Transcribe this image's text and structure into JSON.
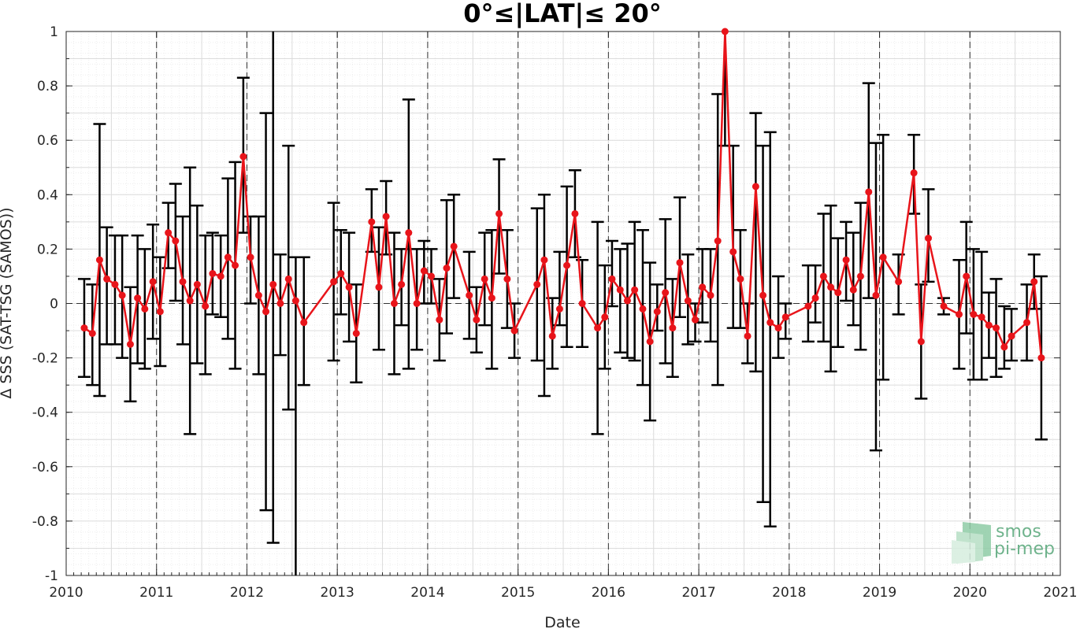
{
  "chart_data": {
    "type": "line",
    "title": "0°≤|LAT|≤ 20°",
    "xlabel": "Date",
    "ylabel": "Δ SSS (SAT-TSG (SAMOS))",
    "xlim": [
      2010,
      2021
    ],
    "ylim": [
      -1,
      1
    ],
    "x_tick_labels": [
      "2010",
      "2011",
      "2012",
      "2013",
      "2014",
      "2015",
      "2016",
      "2017",
      "2018",
      "2019",
      "2020",
      "2021"
    ],
    "y_tick_labels": [
      "-1",
      "-0.8",
      "-0.6",
      "-0.4",
      "-0.2",
      "0",
      "0.2",
      "0.4",
      "0.6",
      "0.8",
      "1"
    ],
    "grid": true,
    "year_dashed_lines": true,
    "zero_dashed_line": true,
    "series_color": "#e8141a",
    "errorbar_color": "#000000",
    "logo": {
      "line1": "smos",
      "line2": "pi-mep",
      "color": "#6fb38c"
    },
    "series": [
      {
        "x": [
          2010.2,
          2010.29,
          2010.37,
          2010.45,
          2010.54,
          2010.62,
          2010.71,
          2010.79,
          2010.87,
          2010.96,
          2011.04,
          2011.13,
          2011.21,
          2011.29,
          2011.37,
          2011.45,
          2011.54,
          2011.62,
          2011.71,
          2011.79,
          2011.87,
          2011.96,
          2012.04,
          2012.13,
          2012.21,
          2012.29,
          2012.37,
          2012.46,
          2012.54,
          2012.63,
          2012.96,
          2013.04,
          2013.13,
          2013.21,
          2013.38,
          2013.46,
          2013.54,
          2013.63,
          2013.71,
          2013.79,
          2013.88,
          2013.96,
          2014.04,
          2014.13,
          2014.21,
          2014.29,
          2014.46,
          2014.54,
          2014.63,
          2014.71,
          2014.79,
          2014.88,
          2014.96,
          2015.21,
          2015.29,
          2015.38,
          2015.46,
          2015.54,
          2015.63,
          2015.71,
          2015.88,
          2015.96,
          2016.04,
          2016.13,
          2016.21,
          2016.29,
          2016.38,
          2016.46,
          2016.54,
          2016.63,
          2016.71,
          2016.79,
          2016.88,
          2016.96,
          2017.04,
          2017.13,
          2017.21,
          2017.29,
          2017.38,
          2017.46,
          2017.54,
          2017.63,
          2017.71,
          2017.79,
          2017.88,
          2017.96,
          2018.21,
          2018.29,
          2018.38,
          2018.46,
          2018.54,
          2018.63,
          2018.71,
          2018.79,
          2018.88,
          2018.96,
          2019.04,
          2019.21,
          2019.38,
          2019.46,
          2019.54,
          2019.71,
          2019.88,
          2019.96,
          2020.04,
          2020.13,
          2020.21,
          2020.29,
          2020.38,
          2020.46,
          2020.63,
          2020.71,
          2020.79
        ],
        "y": [
          -0.09,
          -0.11,
          0.16,
          0.09,
          0.07,
          0.03,
          -0.15,
          0.02,
          -0.02,
          0.08,
          -0.03,
          0.26,
          0.23,
          0.08,
          0.01,
          0.07,
          -0.01,
          0.11,
          0.1,
          0.17,
          0.14,
          0.54,
          0.17,
          0.03,
          -0.03,
          0.07,
          0.0,
          0.09,
          0.01,
          -0.07,
          0.08,
          0.11,
          0.06,
          -0.11,
          0.3,
          0.06,
          0.32,
          0.0,
          0.07,
          0.26,
          0.0,
          0.12,
          0.1,
          -0.06,
          0.13,
          0.21,
          0.03,
          -0.06,
          0.09,
          0.02,
          0.33,
          0.09,
          -0.1,
          0.07,
          0.16,
          -0.12,
          -0.02,
          0.14,
          0.33,
          0.0,
          -0.09,
          -0.05,
          0.09,
          0.05,
          0.01,
          0.05,
          -0.02,
          -0.14,
          -0.03,
          0.04,
          -0.09,
          0.15,
          0.01,
          -0.06,
          0.06,
          0.03,
          0.23,
          1.0,
          0.19,
          0.09,
          -0.12,
          0.43,
          0.03,
          -0.07,
          -0.09,
          -0.05,
          -0.01,
          0.02,
          0.1,
          0.06,
          0.04,
          0.16,
          0.05,
          0.1,
          0.41,
          0.03,
          0.17,
          0.08,
          0.48,
          -0.14,
          0.24,
          -0.01,
          -0.04,
          0.1,
          -0.04,
          -0.05,
          -0.08,
          -0.09,
          -0.16,
          -0.12,
          -0.07,
          0.08,
          -0.2
        ],
        "err_low": [
          -0.27,
          -0.3,
          -0.34,
          -0.15,
          -0.15,
          -0.2,
          -0.36,
          -0.22,
          -0.24,
          -0.13,
          -0.23,
          0.13,
          0.01,
          -0.15,
          -0.48,
          -0.22,
          -0.26,
          -0.04,
          -0.05,
          -0.13,
          -0.24,
          0.26,
          0.0,
          -0.26,
          -0.76,
          -0.88,
          -0.19,
          -0.39,
          -1.0,
          -0.3,
          -0.21,
          -0.04,
          -0.14,
          -0.29,
          0.19,
          -0.17,
          0.18,
          -0.26,
          -0.08,
          -0.24,
          -0.17,
          0.0,
          0.0,
          -0.21,
          -0.11,
          0.02,
          -0.13,
          -0.18,
          -0.08,
          -0.24,
          0.11,
          -0.09,
          -0.2,
          -0.21,
          -0.34,
          -0.24,
          -0.08,
          -0.16,
          0.17,
          -0.16,
          -0.48,
          -0.24,
          -0.01,
          -0.18,
          -0.2,
          -0.21,
          -0.3,
          -0.43,
          -0.1,
          -0.22,
          -0.27,
          -0.05,
          -0.15,
          -0.14,
          -0.07,
          -0.14,
          -0.3,
          0.58,
          -0.09,
          -0.09,
          -0.22,
          -0.25,
          -0.73,
          -0.82,
          -0.2,
          -0.13,
          -0.14,
          -0.07,
          -0.14,
          -0.25,
          -0.16,
          0.01,
          -0.08,
          -0.17,
          0.02,
          -0.54,
          -0.28,
          -0.04,
          0.33,
          -0.35,
          0.08,
          -0.04,
          -0.24,
          -0.11,
          -0.28,
          -0.28,
          -0.2,
          -0.27,
          -0.24,
          -0.21,
          -0.21,
          -0.02,
          -0.5
        ],
        "err_high": [
          0.09,
          0.07,
          0.66,
          0.28,
          0.25,
          0.25,
          0.06,
          0.25,
          0.2,
          0.29,
          0.17,
          0.37,
          0.44,
          0.32,
          0.5,
          0.36,
          0.25,
          0.26,
          0.25,
          0.46,
          0.52,
          0.83,
          0.32,
          0.32,
          0.7,
          1.0,
          0.18,
          0.58,
          0.17,
          0.17,
          0.37,
          0.27,
          0.26,
          0.07,
          0.42,
          0.28,
          0.45,
          0.26,
          0.2,
          0.75,
          0.2,
          0.23,
          0.2,
          0.09,
          0.38,
          0.4,
          0.19,
          0.06,
          0.26,
          0.27,
          0.53,
          0.27,
          0.0,
          0.35,
          0.4,
          0.02,
          0.19,
          0.43,
          0.49,
          0.16,
          0.3,
          0.14,
          0.23,
          0.2,
          0.22,
          0.3,
          0.27,
          0.15,
          0.07,
          0.31,
          0.09,
          0.39,
          0.18,
          0.0,
          0.2,
          0.2,
          0.77,
          1.0,
          0.58,
          0.27,
          0.0,
          0.7,
          0.58,
          0.63,
          0.1,
          0.0,
          0.14,
          0.14,
          0.33,
          0.36,
          0.24,
          0.3,
          0.26,
          0.37,
          0.81,
          0.59,
          0.62,
          0.18,
          0.62,
          0.07,
          0.42,
          0.02,
          0.16,
          0.3,
          0.2,
          0.19,
          0.04,
          0.09,
          -0.01,
          -0.02,
          0.07,
          0.18,
          0.1
        ]
      }
    ]
  }
}
